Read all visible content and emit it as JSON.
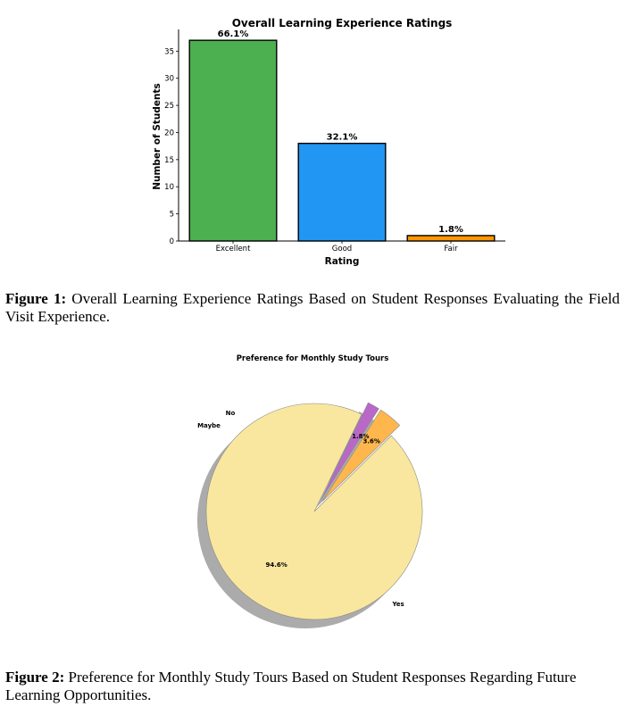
{
  "chart_data": [
    {
      "type": "bar",
      "title": "Overall Learning Experience Ratings",
      "xlabel": "Rating",
      "ylabel": "Number of Students",
      "categories": [
        "Excellent",
        "Good",
        "Fair"
      ],
      "values": [
        37,
        18,
        1
      ],
      "data_labels": [
        "66.1%",
        "32.1%",
        "1.8%"
      ],
      "colors": [
        "#4caf50",
        "#2196f3",
        "#ff9800"
      ],
      "ylim": [
        0,
        39
      ],
      "yticks": [
        0,
        5,
        10,
        15,
        20,
        25,
        30,
        35
      ],
      "grid": false
    },
    {
      "type": "pie",
      "title": "Preference for Monthly Study Tours",
      "slices": [
        {
          "label": "Yes",
          "value": 94.6,
          "pct_label": "94.6%",
          "color": "#f9e79f"
        },
        {
          "label": "No",
          "value": 3.6,
          "pct_label": "3.6%",
          "color": "#ffb74d"
        },
        {
          "label": "Maybe",
          "value": 1.8,
          "pct_label": "1.8%",
          "color": "#ba68c8"
        }
      ],
      "exploded": [
        "No",
        "Maybe"
      ],
      "shadow": true
    }
  ],
  "captions": {
    "figure1_lead": "Figure 1:",
    "figure1_text": " Overall Learning Experience Ratings Based on Student Responses Evaluating the Field Visit Experience.",
    "figure2_lead": "Figure 2:",
    "figure2_text": " Preference for Monthly Study Tours Based on Student Responses Regarding Future Learning Opportunities."
  }
}
